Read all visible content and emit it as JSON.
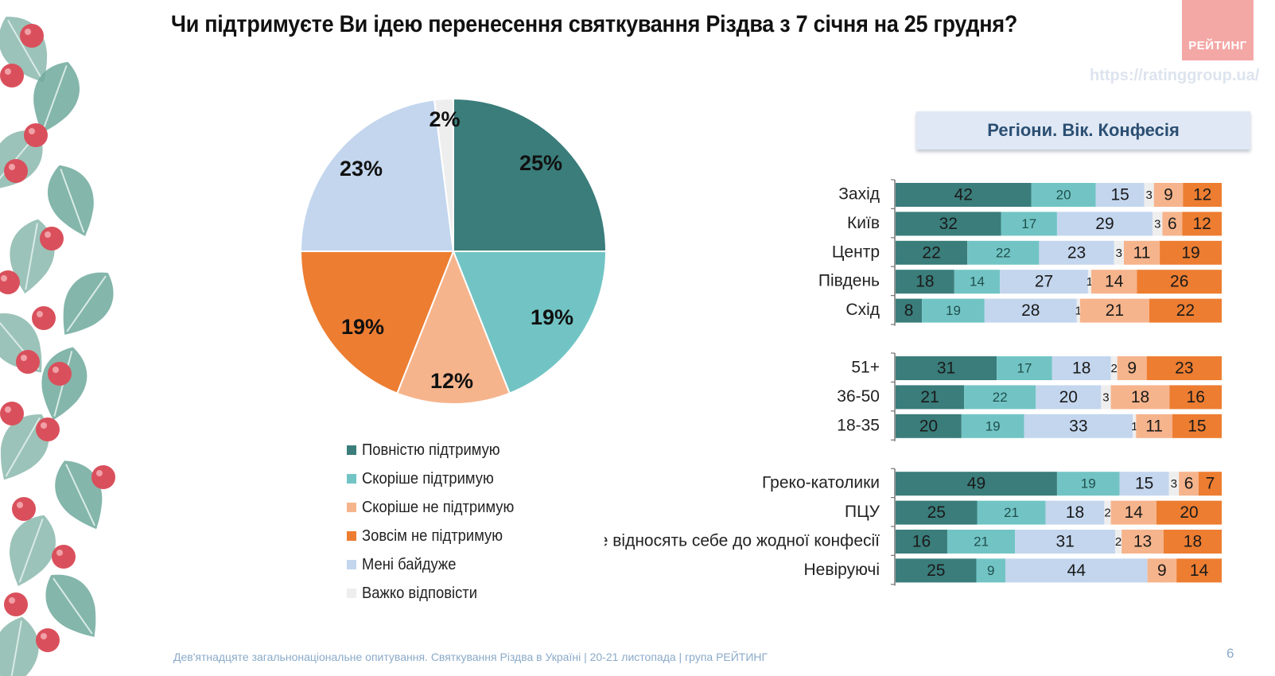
{
  "title": "Чи підтримуєте Ви ідею перенесення святкування Різдва з 7 січня на 25 грудня?",
  "logo_text": "РЕЙТИНГ",
  "site": "https://ratinggroup.ua/",
  "panel_title": "Регіони. Вік. Конфесія",
  "footer": "Дев'ятнадцяте загальнонаціональне опитування. Святкування Різдва в Україні | 20-21 листопада | група РЕЙТИНГ",
  "page_number": "6",
  "colors": {
    "full_support": "#3a7d7b",
    "rather_support": "#72c4c4",
    "rather_not": "#f6b48c",
    "not_support": "#ed7d31",
    "indifferent": "#c3d6ee",
    "hard_to_say": "#eeeeee"
  },
  "chart_data": [
    {
      "type": "pie",
      "slices": [
        {
          "label": "Повністю підтримую",
          "value": 25,
          "display": "25%",
          "color": "#3a7d7b"
        },
        {
          "label": "Скоріше підтримую",
          "value": 19,
          "display": "19%",
          "color": "#72c4c4"
        },
        {
          "label": "Скоріше не підтримую",
          "value": 12,
          "display": "12%",
          "color": "#f6b48c"
        },
        {
          "label": "Зовсім не підтримую",
          "value": 19,
          "display": "19%",
          "color": "#ed7d31"
        },
        {
          "label": "Мені байдуже",
          "value": 23,
          "display": "23%",
          "color": "#c3d6ee"
        },
        {
          "label": "Важко відповісти",
          "value": 2,
          "display": "2%",
          "color": "#eeeeee"
        }
      ],
      "legend": [
        "Повністю підтримую",
        "Скоріше підтримую",
        "Скоріше не підтримую",
        "Зовсім не підтримую",
        "Мені байдуже",
        "Важко відповісти"
      ],
      "legend_position": "bottom"
    },
    {
      "type": "bar",
      "orientation": "horizontal",
      "stacked": true,
      "series_order": [
        "Повністю підтримую",
        "Скоріше підтримую",
        "Мені байдуже",
        "Важко відповісти",
        "Скоріше не підтримую",
        "Зовсім не підтримую"
      ],
      "series_colors": [
        "#3a7d7b",
        "#72c4c4",
        "#c3d6ee",
        "#eeeeee",
        "#f6b48c",
        "#ed7d31"
      ],
      "groups": [
        {
          "rows": [
            {
              "label": "Захід",
              "values": [
                42,
                20,
                15,
                3,
                9,
                12
              ]
            },
            {
              "label": "Київ",
              "values": [
                32,
                17,
                29,
                3,
                6,
                12
              ]
            },
            {
              "label": "Центр",
              "values": [
                22,
                22,
                23,
                3,
                11,
                19
              ]
            },
            {
              "label": "Південь",
              "values": [
                18,
                14,
                27,
                1,
                14,
                26
              ]
            },
            {
              "label": "Схід",
              "values": [
                8,
                19,
                28,
                1,
                21,
                22
              ]
            }
          ]
        },
        {
          "rows": [
            {
              "label": "51+",
              "values": [
                31,
                17,
                18,
                2,
                9,
                23
              ]
            },
            {
              "label": "36-50",
              "values": [
                21,
                22,
                20,
                3,
                18,
                16
              ]
            },
            {
              "label": "18-35",
              "values": [
                20,
                19,
                33,
                1,
                11,
                15
              ]
            }
          ]
        },
        {
          "rows": [
            {
              "label": "Греко-католики",
              "values": [
                49,
                19,
                15,
                3,
                6,
                7
              ]
            },
            {
              "label": "ПЦУ",
              "values": [
                25,
                21,
                18,
                2,
                14,
                20
              ]
            },
            {
              "label": "Не відносять себе до жодної конфесії",
              "values": [
                16,
                21,
                31,
                2,
                13,
                18
              ]
            },
            {
              "label": "Невіруючі",
              "values": [
                25,
                9,
                44,
                0,
                9,
                14
              ]
            }
          ]
        }
      ]
    }
  ]
}
